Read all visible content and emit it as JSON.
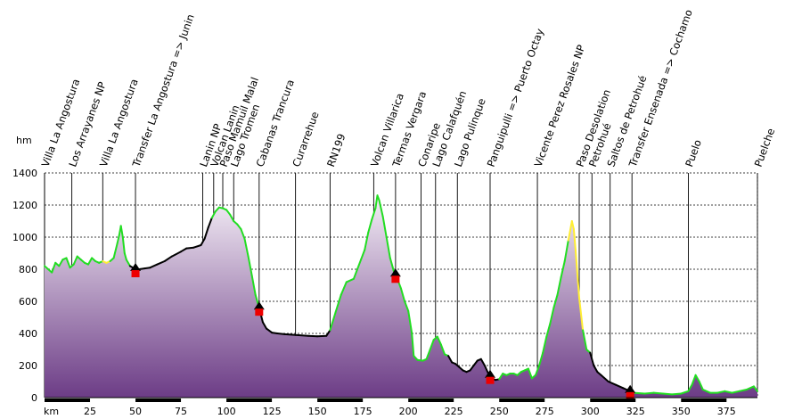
{
  "chart_data": {
    "type": "area",
    "xlabel": "km",
    "ylabel": "hm",
    "xlim": [
      0,
      392
    ],
    "ylim": [
      0,
      1400
    ],
    "x_ticks": [
      25,
      50,
      75,
      100,
      125,
      150,
      175,
      200,
      225,
      250,
      275,
      300,
      325,
      350,
      375
    ],
    "y_ticks": [
      0,
      200,
      400,
      600,
      800,
      1000,
      1200,
      1400
    ],
    "grid": true,
    "colors": {
      "fill_top": "#f4eef6",
      "fill_bottom": "#6c3c86",
      "profile_green": "#22dd22",
      "profile_black": "#000000",
      "profile_yellow": "#ffee33",
      "marker_red": "#ee0000",
      "axis_bar": "#000000"
    },
    "series": [
      {
        "values": [
          [
            0,
            820
          ],
          [
            2,
            800
          ],
          [
            4,
            780
          ],
          [
            6,
            840
          ],
          [
            8,
            820
          ],
          [
            10,
            860
          ],
          [
            12,
            870
          ],
          [
            14,
            810
          ],
          [
            16,
            830
          ],
          [
            18,
            880
          ],
          [
            20,
            860
          ],
          [
            22,
            840
          ],
          [
            24,
            830
          ],
          [
            26,
            870
          ],
          [
            28,
            850
          ],
          [
            30,
            840
          ],
          [
            32,
            850
          ],
          [
            34,
            840
          ],
          [
            36,
            850
          ],
          [
            38,
            870
          ],
          [
            40,
            960
          ],
          [
            41,
            1010
          ],
          [
            42,
            1070
          ],
          [
            43,
            1000
          ],
          [
            44,
            900
          ],
          [
            45,
            860
          ],
          [
            47,
            820
          ],
          [
            50,
            800
          ],
          [
            52,
            800
          ],
          [
            55,
            805
          ],
          [
            58,
            810
          ],
          [
            62,
            830
          ],
          [
            66,
            850
          ],
          [
            70,
            880
          ],
          [
            75,
            910
          ],
          [
            78,
            930
          ],
          [
            82,
            935
          ],
          [
            86,
            950
          ],
          [
            88,
            990
          ],
          [
            90,
            1060
          ],
          [
            92,
            1120
          ],
          [
            94,
            1160
          ],
          [
            96,
            1185
          ],
          [
            98,
            1180
          ],
          [
            100,
            1170
          ],
          [
            102,
            1140
          ],
          [
            104,
            1100
          ],
          [
            106,
            1080
          ],
          [
            108,
            1050
          ],
          [
            110,
            990
          ],
          [
            112,
            880
          ],
          [
            114,
            760
          ],
          [
            116,
            640
          ],
          [
            118,
            560
          ],
          [
            120,
            470
          ],
          [
            122,
            430
          ],
          [
            125,
            405
          ],
          [
            128,
            400
          ],
          [
            132,
            395
          ],
          [
            138,
            390
          ],
          [
            145,
            385
          ],
          [
            150,
            382
          ],
          [
            155,
            385
          ],
          [
            157,
            420
          ],
          [
            160,
            530
          ],
          [
            163,
            640
          ],
          [
            166,
            720
          ],
          [
            170,
            740
          ],
          [
            172,
            800
          ],
          [
            174,
            860
          ],
          [
            176,
            920
          ],
          [
            178,
            1030
          ],
          [
            180,
            1110
          ],
          [
            182,
            1180
          ],
          [
            183,
            1260
          ],
          [
            184,
            1230
          ],
          [
            186,
            1130
          ],
          [
            188,
            1000
          ],
          [
            190,
            870
          ],
          [
            192,
            790
          ],
          [
            194,
            740
          ],
          [
            196,
            680
          ],
          [
            198,
            600
          ],
          [
            200,
            540
          ],
          [
            202,
            400
          ],
          [
            203,
            260
          ],
          [
            205,
            235
          ],
          [
            208,
            230
          ],
          [
            210,
            240
          ],
          [
            212,
            300
          ],
          [
            214,
            360
          ],
          [
            216,
            380
          ],
          [
            218,
            330
          ],
          [
            220,
            270
          ],
          [
            222,
            260
          ],
          [
            224,
            220
          ],
          [
            226,
            210
          ],
          [
            228,
            190
          ],
          [
            230,
            170
          ],
          [
            232,
            160
          ],
          [
            234,
            170
          ],
          [
            236,
            200
          ],
          [
            238,
            230
          ],
          [
            240,
            240
          ],
          [
            242,
            200
          ],
          [
            244,
            150
          ],
          [
            246,
            120
          ],
          [
            248,
            110
          ],
          [
            250,
            115
          ],
          [
            252,
            150
          ],
          [
            254,
            140
          ],
          [
            256,
            150
          ],
          [
            258,
            150
          ],
          [
            260,
            140
          ],
          [
            262,
            160
          ],
          [
            264,
            170
          ],
          [
            266,
            180
          ],
          [
            268,
            120
          ],
          [
            270,
            140
          ],
          [
            272,
            200
          ],
          [
            274,
            280
          ],
          [
            276,
            380
          ],
          [
            278,
            460
          ],
          [
            280,
            560
          ],
          [
            282,
            640
          ],
          [
            284,
            750
          ],
          [
            286,
            850
          ],
          [
            288,
            980
          ],
          [
            290,
            1100
          ],
          [
            291,
            1050
          ],
          [
            292,
            920
          ],
          [
            294,
            620
          ],
          [
            296,
            420
          ],
          [
            298,
            300
          ],
          [
            300,
            280
          ],
          [
            302,
            200
          ],
          [
            304,
            160
          ],
          [
            306,
            140
          ],
          [
            310,
            100
          ],
          [
            314,
            80
          ],
          [
            318,
            60
          ],
          [
            320,
            50
          ],
          [
            324,
            30
          ],
          [
            330,
            25
          ],
          [
            335,
            30
          ],
          [
            340,
            25
          ],
          [
            345,
            20
          ],
          [
            350,
            25
          ],
          [
            354,
            40
          ],
          [
            356,
            80
          ],
          [
            358,
            140
          ],
          [
            360,
            100
          ],
          [
            362,
            50
          ],
          [
            366,
            30
          ],
          [
            370,
            30
          ],
          [
            374,
            40
          ],
          [
            378,
            30
          ],
          [
            382,
            40
          ],
          [
            386,
            50
          ],
          [
            390,
            70
          ],
          [
            392,
            40
          ]
        ]
      }
    ],
    "waypoints": [
      {
        "km": 0,
        "name": "Villa La Angostura"
      },
      {
        "km": 15,
        "name": "Los Arrayanes NP"
      },
      {
        "km": 32,
        "name": "Villa La Angostura"
      },
      {
        "km": 50,
        "name": "Transfer La Angostura => Junin"
      },
      {
        "km": 87,
        "name": "Lanin NP"
      },
      {
        "km": 93,
        "name": "Volcan Lanin"
      },
      {
        "km": 98,
        "name": "Paso Mamuil Malal"
      },
      {
        "km": 104,
        "name": "Lago Tromen"
      },
      {
        "km": 118,
        "name": "Cabanas Trancura"
      },
      {
        "km": 138,
        "name": "Curarrehue"
      },
      {
        "km": 157,
        "name": "RN199"
      },
      {
        "km": 181,
        "name": "Volcan Villarica"
      },
      {
        "km": 193,
        "name": "Termas Vergara"
      },
      {
        "km": 207,
        "name": "Conaripe"
      },
      {
        "km": 215,
        "name": "Lago Calafquén"
      },
      {
        "km": 227,
        "name": "Lago Pulinque"
      },
      {
        "km": 245,
        "name": "Panguipulli => Puerto Octay"
      },
      {
        "km": 271,
        "name": "Vicente Perez Rosales NP"
      },
      {
        "km": 294,
        "name": "Paso Desolation"
      },
      {
        "km": 301,
        "name": "Petrohué"
      },
      {
        "km": 311,
        "name": "Saltos de Petrohué"
      },
      {
        "km": 323,
        "name": "Transfer Ensenada => Cochamo"
      },
      {
        "km": 354,
        "name": "Puelo"
      },
      {
        "km": 392,
        "name": "Puelche"
      }
    ],
    "markers_km": [
      50,
      118,
      193,
      245,
      322
    ]
  }
}
